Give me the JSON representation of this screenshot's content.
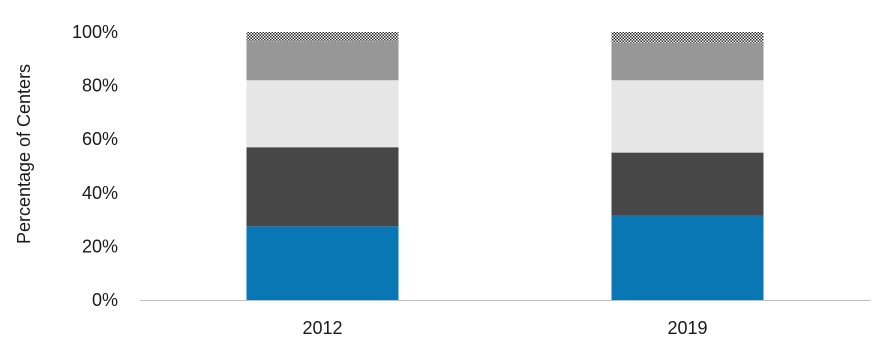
{
  "chart_data": {
    "type": "bar",
    "stacked": true,
    "categories": [
      "2012",
      "2019"
    ],
    "ylabel": "Percentage of Centers",
    "ylim": [
      0,
      100
    ],
    "yticks": [
      "0%",
      "20%",
      "40%",
      "60%",
      "80%",
      "100%"
    ],
    "grid": false,
    "legend": "none",
    "series": [
      {
        "values": [
          27.5,
          31.5
        ],
        "color": "#0a77b5"
      },
      {
        "values": [
          29.5,
          23.5
        ],
        "color": "#474747"
      },
      {
        "values": [
          25.0,
          27.0
        ],
        "color": "#e6e6e6"
      },
      {
        "values": [
          14.5,
          14.0
        ],
        "color": "#979797"
      },
      {
        "values": [
          3.5,
          4.0
        ],
        "color": "#d9d9d9",
        "pattern": "dots"
      }
    ]
  }
}
